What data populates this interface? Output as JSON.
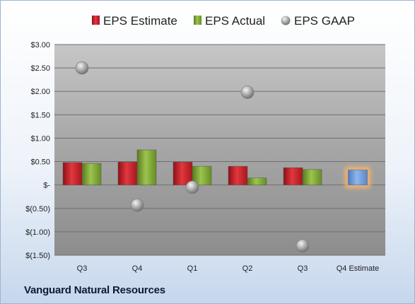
{
  "chart_data": {
    "type": "bar",
    "categories": [
      "Q3",
      "Q4",
      "Q1",
      "Q2",
      "Q3",
      "Q4 Estimate"
    ],
    "series": [
      {
        "name": "EPS Estimate",
        "type": "bar",
        "values": [
          0.48,
          0.49,
          0.49,
          0.4,
          0.37,
          null
        ]
      },
      {
        "name": "EPS Actual",
        "type": "bar",
        "values": [
          0.46,
          0.75,
          0.4,
          0.15,
          0.33,
          null
        ]
      },
      {
        "name": "EPS GAAP",
        "type": "scatter",
        "values": [
          2.5,
          -0.43,
          -0.05,
          1.98,
          -1.3,
          null
        ]
      }
    ],
    "highlight": {
      "category": "Q4 Estimate",
      "value": 0.32,
      "color": "#6f99d8",
      "glow": "#f2b36d"
    },
    "yticks": [
      "$3.00",
      "$2.50",
      "$2.00",
      "$1.50",
      "$1.00",
      "$0.50",
      "$-",
      "$(0.50)",
      "$(1.00)",
      "$(1.50)"
    ],
    "ylim": [
      -1.5,
      3.0
    ],
    "grid": true,
    "legend_position": "top",
    "colors": {
      "estimate": "#c9222a",
      "actual": "#7ea43a",
      "gaap": "#a4a4a4",
      "plot_top": "#c6c6c6",
      "plot_bottom": "#8d8d8d"
    }
  },
  "footer": {
    "company": "Vanguard Natural Resources"
  }
}
